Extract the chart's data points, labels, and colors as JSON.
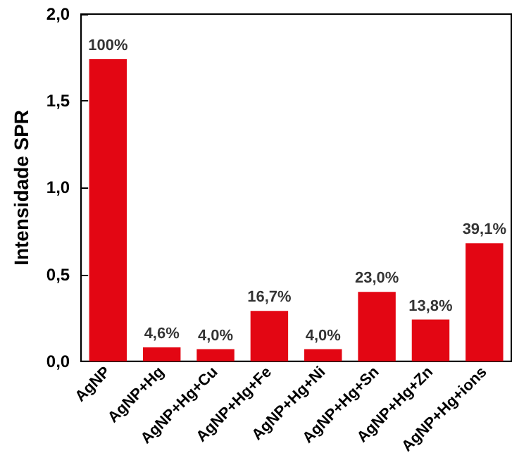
{
  "chart_data": {
    "type": "bar",
    "ylabel": "Intensidade SPR",
    "categories": [
      "AgNP",
      "AgNP+Hg",
      "AgNP+Hg+Cu",
      "AgNP+Hg+Fe",
      "AgNP+Hg+Ni",
      "AgNP+Hg+Sn",
      "AgNP+Hg+Zn",
      "AgNP+Hg+ions"
    ],
    "values": [
      1.74,
      0.08,
      0.07,
      0.29,
      0.07,
      0.4,
      0.24,
      0.68
    ],
    "annotations": [
      {
        "text": "100%",
        "x": "AgNP",
        "y": 1.74
      },
      {
        "text": "4,6%",
        "x": "AgNP+Hg",
        "y": 0.08
      },
      {
        "text": "4,0%",
        "x": "AgNP+Hg+Cu",
        "y": 0.07
      },
      {
        "text": "16,7%",
        "x": "AgNP+Hg+Fe",
        "y": 0.29
      },
      {
        "text": "4,0%",
        "x": "AgNP+Hg+Ni",
        "y": 0.07
      },
      {
        "text": "23,0%",
        "x": "AgNP+Hg+Sn",
        "y": 0.4
      },
      {
        "text": "13,8%",
        "x": "AgNP+Hg+Zn",
        "y": 0.24
      },
      {
        "text": "39,1%",
        "x": "AgNP+Hg+ions",
        "y": 0.68
      }
    ],
    "color": "#e30613",
    "ylim": [
      0,
      2.0
    ],
    "yticks": [
      {
        "value": 0,
        "label": "0,0"
      },
      {
        "value": 0.5,
        "label": "0,5"
      },
      {
        "value": 1,
        "label": "1,0"
      },
      {
        "value": 1.5,
        "label": "1,5"
      },
      {
        "value": 2,
        "label": "2,0"
      }
    ],
    "grid": false
  }
}
